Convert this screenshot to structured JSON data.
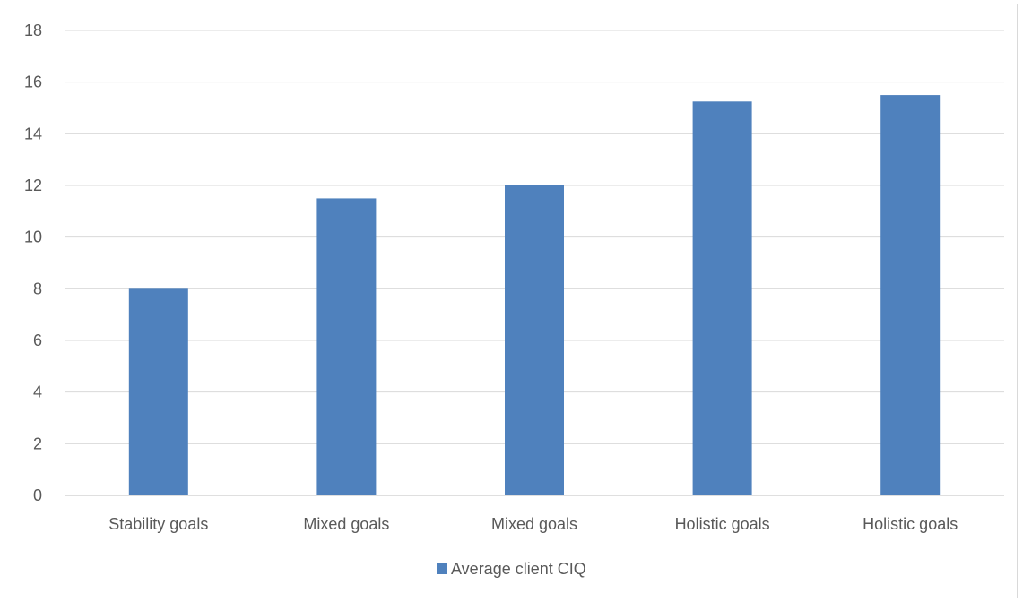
{
  "chart_data": {
    "type": "bar",
    "categories": [
      "Stability goals",
      "Mixed goals",
      "Mixed goals",
      "Holistic goals",
      "Holistic goals"
    ],
    "series": [
      {
        "name": "Average client CIQ",
        "values": [
          8,
          11.5,
          12,
          15.25,
          15.5
        ],
        "color": "#4f81bd"
      }
    ],
    "ylim": [
      0,
      18
    ],
    "yticks": [
      0,
      2,
      4,
      6,
      8,
      10,
      12,
      14,
      16,
      18
    ],
    "grid": true,
    "legend_position": "bottom",
    "gridline_color": "#d9d9d9",
    "axis_color": "#bfbfbf",
    "tick_text_color": "#595959"
  }
}
